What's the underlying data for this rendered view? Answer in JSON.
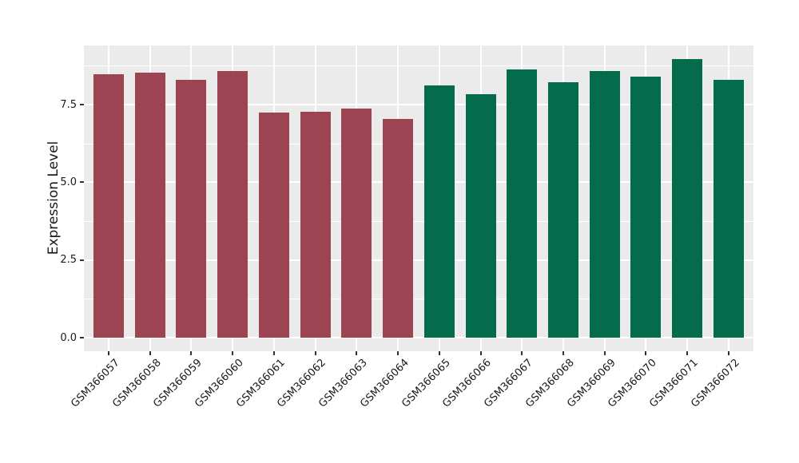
{
  "chart_data": {
    "type": "bar",
    "title": "",
    "xlabel": "",
    "ylabel": "Expression Level",
    "categories": [
      "GSM366057",
      "GSM366058",
      "GSM366059",
      "GSM366060",
      "GSM366061",
      "GSM366062",
      "GSM366063",
      "GSM366064",
      "GSM366065",
      "GSM366066",
      "GSM366067",
      "GSM366068",
      "GSM366069",
      "GSM366070",
      "GSM366071",
      "GSM366072"
    ],
    "values": [
      8.47,
      8.53,
      8.31,
      8.57,
      7.24,
      7.28,
      7.36,
      7.04,
      8.13,
      7.83,
      8.63,
      8.21,
      8.57,
      8.41,
      8.97,
      8.3
    ],
    "bar_colors": [
      "#9C4452",
      "#9C4452",
      "#9C4452",
      "#9C4452",
      "#9C4452",
      "#9C4452",
      "#9C4452",
      "#9C4452",
      "#046B4D",
      "#046B4D",
      "#046B4D",
      "#046B4D",
      "#046B4D",
      "#046B4D",
      "#046B4D",
      "#046B4D"
    ],
    "group_palette": {
      "left_group": "#9C4452",
      "right_group": "#046B4D"
    },
    "y_ticks": [
      {
        "value": 0.0,
        "label": "0.0"
      },
      {
        "value": 2.5,
        "label": "2.5"
      },
      {
        "value": 5.0,
        "label": "5.0"
      },
      {
        "value": 7.5,
        "label": "7.5"
      }
    ],
    "y_minor_gridlines": [
      1.25,
      3.75,
      6.25,
      8.75
    ],
    "ylim": [
      -0.44,
      9.4
    ],
    "grid": "white major+minor horizontal, white major vertical at each category",
    "legend": "none",
    "panel_background": "#EBEBEB",
    "gridline_color": "#FFFFFF",
    "axis_text_color": "#1A1A1A",
    "tick_mark_color": "#333333"
  }
}
